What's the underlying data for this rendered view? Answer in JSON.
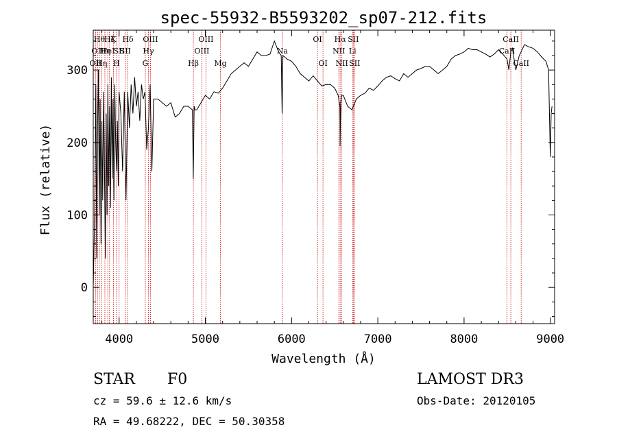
{
  "chart_data": {
    "type": "line",
    "title": "spec-55932-B5593202_sp07-212.fits",
    "xlabel": "Wavelength (Å)",
    "ylabel": "Flux (relative)",
    "xlim": [
      3700,
      9050
    ],
    "ylim": [
      -50,
      355
    ],
    "xticks": [
      4000,
      5000,
      6000,
      7000,
      8000,
      9000
    ],
    "yticks": [
      0,
      100,
      200,
      300
    ],
    "tick_labels_x": [
      "4000",
      "5000",
      "6000",
      "7000",
      "8000",
      "9000"
    ],
    "tick_labels_y": [
      "0",
      "100",
      "200",
      "300"
    ],
    "line_color": "#000000",
    "marker_color": "#cc0000",
    "series": [
      {
        "name": "flux",
        "x": [
          3700,
          3710,
          3720,
          3730,
          3740,
          3750,
          3760,
          3770,
          3780,
          3790,
          3800,
          3810,
          3820,
          3830,
          3840,
          3850,
          3860,
          3870,
          3880,
          3890,
          3900,
          3910,
          3920,
          3930,
          3940,
          3950,
          3960,
          3970,
          3980,
          3990,
          4000,
          4020,
          4040,
          4060,
          4080,
          4100,
          4120,
          4140,
          4160,
          4180,
          4200,
          4220,
          4240,
          4260,
          4280,
          4300,
          4320,
          4340,
          4360,
          4380,
          4400,
          4450,
          4500,
          4550,
          4600,
          4650,
          4700,
          4750,
          4800,
          4850,
          4860,
          4870,
          4880,
          4900,
          4950,
          5000,
          5050,
          5100,
          5150,
          5200,
          5250,
          5300,
          5350,
          5400,
          5450,
          5500,
          5550,
          5600,
          5650,
          5700,
          5750,
          5800,
          5850,
          5880,
          5890,
          5900,
          5950,
          6000,
          6050,
          6100,
          6150,
          6200,
          6250,
          6300,
          6350,
          6400,
          6450,
          6500,
          6540,
          6560,
          6563,
          6570,
          6580,
          6600,
          6650,
          6700,
          6750,
          6800,
          6850,
          6900,
          6950,
          7000,
          7050,
          7100,
          7150,
          7200,
          7250,
          7300,
          7350,
          7400,
          7450,
          7500,
          7550,
          7600,
          7650,
          7700,
          7750,
          7800,
          7850,
          7900,
          7950,
          8000,
          8050,
          8100,
          8150,
          8200,
          8250,
          8300,
          8350,
          8400,
          8450,
          8498,
          8520,
          8542,
          8560,
          8600,
          8640,
          8662,
          8680,
          8700,
          8750,
          8800,
          8850,
          8900,
          8950,
          8980,
          9000,
          9010,
          9020
        ],
        "y": [
          0,
          60,
          140,
          280,
          40,
          220,
          300,
          100,
          260,
          60,
          230,
          120,
          270,
          160,
          40,
          240,
          100,
          280,
          140,
          250,
          110,
          290,
          150,
          260,
          120,
          280,
          200,
          160,
          230,
          140,
          270,
          240,
          160,
          270,
          120,
          270,
          220,
          280,
          240,
          290,
          250,
          270,
          230,
          280,
          260,
          270,
          190,
          220,
          280,
          160,
          260,
          260,
          255,
          250,
          255,
          235,
          240,
          250,
          250,
          245,
          150,
          250,
          245,
          245,
          255,
          265,
          260,
          270,
          268,
          275,
          285,
          295,
          300,
          305,
          310,
          305,
          315,
          325,
          320,
          320,
          322,
          340,
          325,
          320,
          240,
          320,
          315,
          312,
          305,
          295,
          290,
          285,
          292,
          285,
          278,
          280,
          280,
          275,
          265,
          250,
          195,
          255,
          265,
          265,
          250,
          245,
          260,
          265,
          268,
          275,
          272,
          278,
          285,
          290,
          292,
          288,
          285,
          295,
          290,
          295,
          300,
          302,
          305,
          305,
          300,
          295,
          300,
          305,
          315,
          320,
          322,
          325,
          330,
          328,
          328,
          325,
          322,
          318,
          322,
          328,
          322,
          315,
          300,
          325,
          330,
          300,
          320,
          325,
          330,
          335,
          332,
          330,
          325,
          318,
          312,
          300,
          180,
          240,
          250
        ]
      }
    ],
    "line_markers": [
      {
        "wavelength": 3727,
        "label": "OII",
        "row": 3
      },
      {
        "wavelength": 3750,
        "label": "OII",
        "row": 2
      },
      {
        "wavelength": 3771,
        "label": "Hθ",
        "row": 1
      },
      {
        "wavelength": 3798,
        "label": "Hη",
        "row": 3
      },
      {
        "wavelength": 3835,
        "label": "Hη",
        "row": 2
      },
      {
        "wavelength": 3869,
        "label": "HeI",
        "row": 2
      },
      {
        "wavelength": 3889,
        "label": "Hζ",
        "row": 1
      },
      {
        "wavelength": 3934,
        "label": "K",
        "row": 1
      },
      {
        "wavelength": 3970,
        "label": "H",
        "row": 3
      },
      {
        "wavelength": 4000,
        "label": "SII",
        "row": 2
      },
      {
        "wavelength": 4072,
        "label": "SII",
        "row": 2
      },
      {
        "wavelength": 4102,
        "label": "Hδ",
        "row": 1
      },
      {
        "wavelength": 4304,
        "label": "G",
        "row": 3
      },
      {
        "wavelength": 4340,
        "label": "Hγ",
        "row": 2
      },
      {
        "wavelength": 4363,
        "label": "OIII",
        "row": 1
      },
      {
        "wavelength": 4861,
        "label": "Hβ",
        "row": 3
      },
      {
        "wavelength": 4959,
        "label": "OIII",
        "row": 2
      },
      {
        "wavelength": 5007,
        "label": "OIII",
        "row": 1
      },
      {
        "wavelength": 5175,
        "label": "Mg",
        "row": 3
      },
      {
        "wavelength": 5893,
        "label": "Na",
        "row": 2
      },
      {
        "wavelength": 6300,
        "label": "OI",
        "row": 1
      },
      {
        "wavelength": 6364,
        "label": "OI",
        "row": 3
      },
      {
        "wavelength": 6548,
        "label": "NII",
        "row": 2
      },
      {
        "wavelength": 6563,
        "label": "Hα",
        "row": 1
      },
      {
        "wavelength": 6583,
        "label": "NII",
        "row": 3
      },
      {
        "wavelength": 6707,
        "label": "Li",
        "row": 2
      },
      {
        "wavelength": 6716,
        "label": "SII",
        "row": 1
      },
      {
        "wavelength": 6731,
        "label": "SII",
        "row": 3
      },
      {
        "wavelength": 8498,
        "label": "CaII",
        "row": 2
      },
      {
        "wavelength": 8542,
        "label": "CaII",
        "row": 1
      },
      {
        "wavelength": 8662,
        "label": "CaII",
        "row": 3
      }
    ]
  },
  "info": {
    "object_class": "STAR",
    "subclass": "F0",
    "survey": "LAMOST DR3",
    "redshift": "cz =  59.6 ± 12.6 km/s",
    "obs_date": "Obs-Date: 20120105",
    "coordinates": "RA =  49.68222, DEC =  50.30358"
  }
}
